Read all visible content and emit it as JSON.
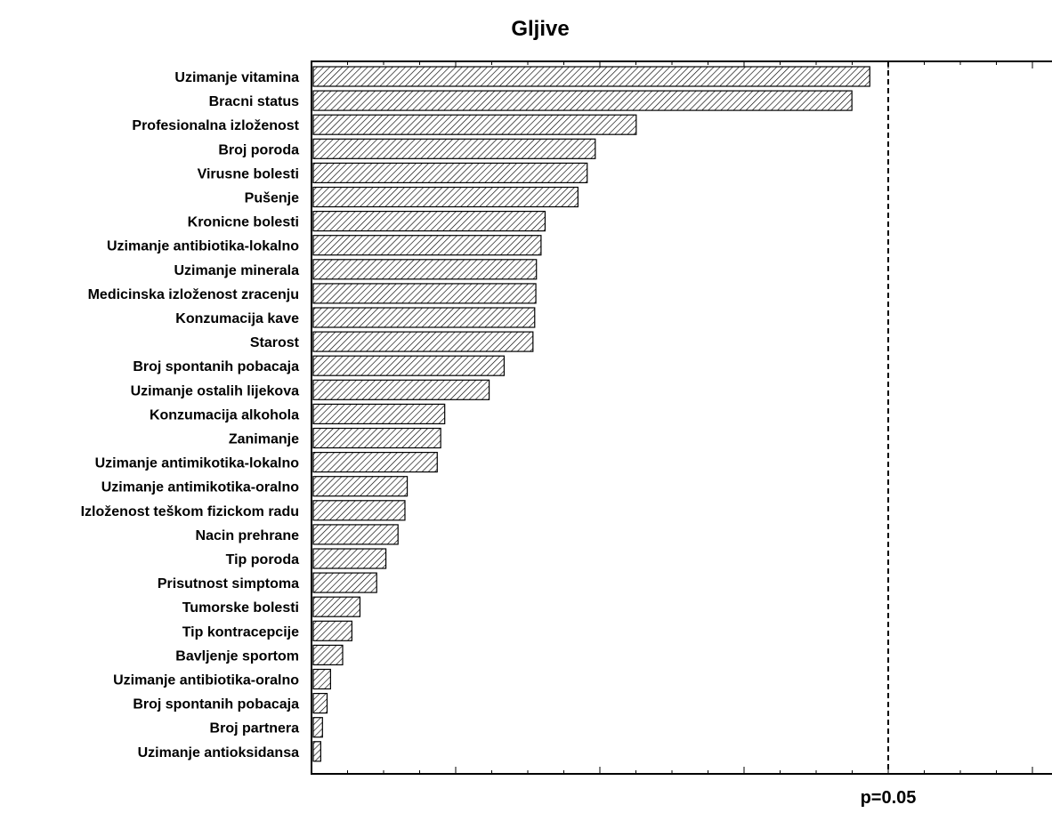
{
  "chart_data": {
    "type": "bar",
    "orientation": "horizontal",
    "title": "Gljive",
    "xlabel": "",
    "ylabel": "",
    "grid": false,
    "xlim": [
      0,
      1.48
    ],
    "reference_line": {
      "value": 1.0,
      "label": "p=0.05",
      "style": "dashed"
    },
    "categories": [
      "Uzimanje vitamina",
      "Bracni status",
      "Profesionalna izloženost",
      "Broj poroda",
      "Virusne bolesti",
      "Pušenje",
      "Kronicne bolesti",
      "Uzimanje antibiotika-lokalno",
      "Uzimanje minerala",
      "Medicinska izloženost zracenju",
      "Konzumacija kave",
      "Starost",
      "Broj spontanih pobacaja",
      "Uzimanje ostalih lijekova",
      "Konzumacija alkohola",
      "Zanimanje",
      "Uzimanje antimikotika-lokalno",
      "Uzimanje antimikotika-oralno",
      "Izloženost teškom fizickom radu",
      "Nacin prehrane",
      "Tip poroda",
      "Prisutnost simptoma",
      "Tumorske bolesti",
      "Tip kontracepcije",
      "Bavljenje sportom",
      "Uzimanje antibiotika-oralno",
      "Broj spontanih pobacaja",
      "Broj partnera",
      "Uzimanje antioksidansa"
    ],
    "values": [
      0.968,
      0.937,
      0.563,
      0.492,
      0.478,
      0.462,
      0.405,
      0.398,
      0.39,
      0.389,
      0.387,
      0.384,
      0.334,
      0.308,
      0.231,
      0.224,
      0.218,
      0.166,
      0.162,
      0.15,
      0.129,
      0.113,
      0.084,
      0.07,
      0.054,
      0.033,
      0.027,
      0.019,
      0.016
    ]
  }
}
